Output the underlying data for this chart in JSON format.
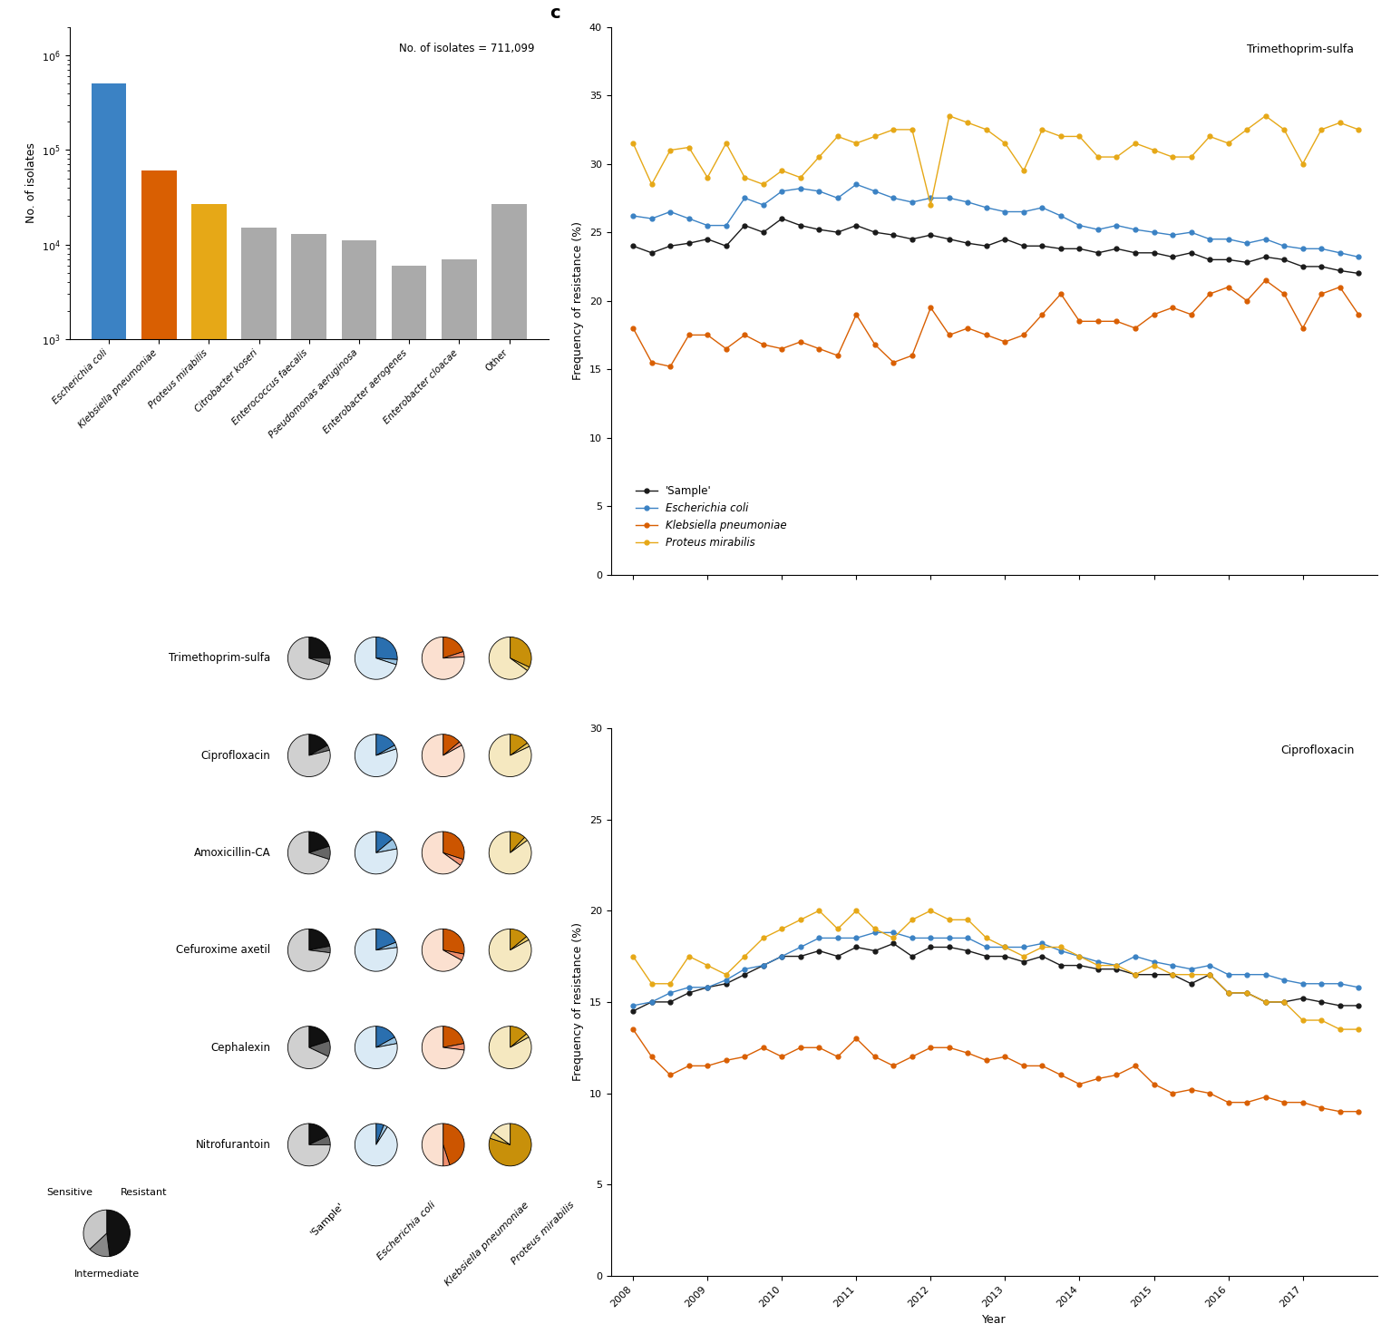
{
  "bar_categories": [
    "Escherichia coli",
    "Klebsiella pneumoniae",
    "Proteus mirabilis",
    "Citrobacter koseri",
    "Enterococcus faecalis",
    "Pseudomonas aeruginosa",
    "Enterobacter aerogenes",
    "Enterobacter cloacae",
    "Other"
  ],
  "bar_values": [
    500000,
    60000,
    27000,
    15000,
    13000,
    11000,
    6000,
    7000,
    27000
  ],
  "bar_colors": [
    "#3b82c4",
    "#d95f02",
    "#e6a817",
    "#aaaaaa",
    "#aaaaaa",
    "#aaaaaa",
    "#aaaaaa",
    "#aaaaaa",
    "#aaaaaa"
  ],
  "bar_annotation": "No. of isolates = 711,099",
  "years": [
    2008,
    2008.25,
    2008.5,
    2008.75,
    2009,
    2009.25,
    2009.5,
    2009.75,
    2010,
    2010.25,
    2010.5,
    2010.75,
    2011,
    2011.25,
    2011.5,
    2011.75,
    2012,
    2012.25,
    2012.5,
    2012.75,
    2013,
    2013.25,
    2013.5,
    2013.75,
    2014,
    2014.25,
    2014.5,
    2014.75,
    2015,
    2015.25,
    2015.5,
    2015.75,
    2016,
    2016.25,
    2016.5,
    2016.75,
    2017,
    2017.25,
    2017.5,
    2017.75
  ],
  "trimethoprim_sample": [
    24.0,
    23.5,
    24.0,
    24.2,
    24.5,
    24.0,
    25.5,
    25.0,
    26.0,
    25.5,
    25.2,
    25.0,
    25.5,
    25.0,
    24.8,
    24.5,
    24.8,
    24.5,
    24.2,
    24.0,
    24.5,
    24.0,
    24.0,
    23.8,
    23.8,
    23.5,
    23.8,
    23.5,
    23.5,
    23.2,
    23.5,
    23.0,
    23.0,
    22.8,
    23.2,
    23.0,
    22.5,
    22.5,
    22.2,
    22.0
  ],
  "trimethoprim_ecoli": [
    26.2,
    26.0,
    26.5,
    26.0,
    25.5,
    25.5,
    27.5,
    27.0,
    28.0,
    28.2,
    28.0,
    27.5,
    28.5,
    28.0,
    27.5,
    27.2,
    27.5,
    27.5,
    27.2,
    26.8,
    26.5,
    26.5,
    26.8,
    26.2,
    25.5,
    25.2,
    25.5,
    25.2,
    25.0,
    24.8,
    25.0,
    24.5,
    24.5,
    24.2,
    24.5,
    24.0,
    23.8,
    23.8,
    23.5,
    23.2
  ],
  "trimethoprim_kpneumo": [
    18.0,
    15.5,
    15.2,
    17.5,
    17.5,
    16.5,
    17.5,
    16.8,
    16.5,
    17.0,
    16.5,
    16.0,
    19.0,
    16.8,
    15.5,
    16.0,
    19.5,
    17.5,
    18.0,
    17.5,
    17.0,
    17.5,
    19.0,
    20.5,
    18.5,
    18.5,
    18.5,
    18.0,
    19.0,
    19.5,
    19.0,
    20.5,
    21.0,
    20.0,
    21.5,
    20.5,
    18.0,
    20.5,
    21.0,
    19.0
  ],
  "trimethoprim_pmirabilis": [
    31.5,
    28.5,
    31.0,
    31.2,
    29.0,
    31.5,
    29.0,
    28.5,
    29.5,
    29.0,
    30.5,
    32.0,
    31.5,
    32.0,
    32.5,
    32.5,
    27.0,
    33.5,
    33.0,
    32.5,
    31.5,
    29.5,
    32.5,
    32.0,
    32.0,
    30.5,
    30.5,
    31.5,
    31.0,
    30.5,
    30.5,
    32.0,
    31.5,
    32.5,
    33.5,
    32.5,
    30.0,
    32.5,
    33.0,
    32.5
  ],
  "cipro_sample": [
    14.5,
    15.0,
    15.0,
    15.5,
    15.8,
    16.0,
    16.5,
    17.0,
    17.5,
    17.5,
    17.8,
    17.5,
    18.0,
    17.8,
    18.2,
    17.5,
    18.0,
    18.0,
    17.8,
    17.5,
    17.5,
    17.2,
    17.5,
    17.0,
    17.0,
    16.8,
    16.8,
    16.5,
    16.5,
    16.5,
    16.0,
    16.5,
    15.5,
    15.5,
    15.0,
    15.0,
    15.2,
    15.0,
    14.8,
    14.8
  ],
  "cipro_ecoli": [
    14.8,
    15.0,
    15.5,
    15.8,
    15.8,
    16.2,
    16.8,
    17.0,
    17.5,
    18.0,
    18.5,
    18.5,
    18.5,
    18.8,
    18.8,
    18.5,
    18.5,
    18.5,
    18.5,
    18.0,
    18.0,
    18.0,
    18.2,
    17.8,
    17.5,
    17.2,
    17.0,
    17.5,
    17.2,
    17.0,
    16.8,
    17.0,
    16.5,
    16.5,
    16.5,
    16.2,
    16.0,
    16.0,
    16.0,
    15.8
  ],
  "cipro_kpneumo": [
    13.5,
    12.0,
    11.0,
    11.5,
    11.5,
    11.8,
    12.0,
    12.5,
    12.0,
    12.5,
    12.5,
    12.0,
    13.0,
    12.0,
    11.5,
    12.0,
    12.5,
    12.5,
    12.2,
    11.8,
    12.0,
    11.5,
    11.5,
    11.0,
    10.5,
    10.8,
    11.0,
    11.5,
    10.5,
    10.0,
    10.2,
    10.0,
    9.5,
    9.5,
    9.8,
    9.5,
    9.5,
    9.2,
    9.0,
    9.0
  ],
  "cipro_pmirabilis": [
    17.5,
    16.0,
    16.0,
    17.5,
    17.0,
    16.5,
    17.5,
    18.5,
    19.0,
    19.5,
    20.0,
    19.0,
    20.0,
    19.0,
    18.5,
    19.5,
    20.0,
    19.5,
    19.5,
    18.5,
    18.0,
    17.5,
    18.0,
    18.0,
    17.5,
    17.0,
    17.0,
    16.5,
    17.0,
    16.5,
    16.5,
    16.5,
    15.5,
    15.5,
    15.0,
    15.0,
    14.0,
    14.0,
    13.5,
    13.5
  ],
  "line_colors": {
    "sample": "#1a1a1a",
    "ecoli": "#3b82c4",
    "kpneumo": "#d95f02",
    "pmirabilis": "#e6a817"
  },
  "pie_antibiotics": [
    "Trimethoprim-sulfa",
    "Ciprofloxacin",
    "Amoxicillin-CA",
    "Cefuroxime axetil",
    "Cephalexin",
    "Nitrofurantoin"
  ],
  "pie_data": {
    "sample": {
      "Trimethoprim-sulfa": [
        0.25,
        0.05,
        0.7
      ],
      "Ciprofloxacin": [
        0.17,
        0.04,
        0.79
      ],
      "Amoxicillin-CA": [
        0.2,
        0.1,
        0.7
      ],
      "Cefuroxime axetil": [
        0.22,
        0.05,
        0.73
      ],
      "Cephalexin": [
        0.2,
        0.12,
        0.68
      ],
      "Nitrofurantoin": [
        0.18,
        0.07,
        0.75
      ]
    },
    "ecoli": {
      "Trimethoprim-sulfa": [
        0.26,
        0.04,
        0.7
      ],
      "Ciprofloxacin": [
        0.17,
        0.03,
        0.8
      ],
      "Amoxicillin-CA": [
        0.14,
        0.08,
        0.78
      ],
      "Cefuroxime axetil": [
        0.19,
        0.04,
        0.77
      ],
      "Cephalexin": [
        0.17,
        0.05,
        0.78
      ],
      "Nitrofurantoin": [
        0.06,
        0.03,
        0.91
      ]
    },
    "kpneumo": {
      "Trimethoprim-sulfa": [
        0.2,
        0.04,
        0.76
      ],
      "Ciprofloxacin": [
        0.14,
        0.03,
        0.83
      ],
      "Amoxicillin-CA": [
        0.3,
        0.05,
        0.65
      ],
      "Cefuroxime axetil": [
        0.28,
        0.05,
        0.67
      ],
      "Cephalexin": [
        0.22,
        0.05,
        0.73
      ],
      "Nitrofurantoin": [
        0.45,
        0.05,
        0.5
      ]
    },
    "pmirabilis": {
      "Trimethoprim-sulfa": [
        0.32,
        0.03,
        0.65
      ],
      "Ciprofloxacin": [
        0.15,
        0.03,
        0.82
      ],
      "Amoxicillin-CA": [
        0.12,
        0.03,
        0.85
      ],
      "Cefuroxime axetil": [
        0.14,
        0.03,
        0.83
      ],
      "Cephalexin": [
        0.14,
        0.03,
        0.83
      ],
      "Nitrofurantoin": [
        0.8,
        0.05,
        0.15
      ]
    }
  },
  "pie_colors": {
    "sample": [
      "#111111",
      "#666666",
      "#d0d0d0"
    ],
    "ecoli": [
      "#2a6faf",
      "#9bc4e2",
      "#daeaf5"
    ],
    "kpneumo": [
      "#cc5500",
      "#f09070",
      "#fbe0d0"
    ],
    "pmirabilis": [
      "#c8900a",
      "#e8c860",
      "#f5e8c0"
    ]
  },
  "xtick_labels": [
    "2008",
    "2009",
    "2010",
    "2011",
    "2012",
    "2013",
    "2014",
    "2015",
    "2016",
    "2017"
  ],
  "xtick_positions": [
    2008,
    2009,
    2010,
    2011,
    2012,
    2013,
    2014,
    2015,
    2016,
    2017
  ]
}
